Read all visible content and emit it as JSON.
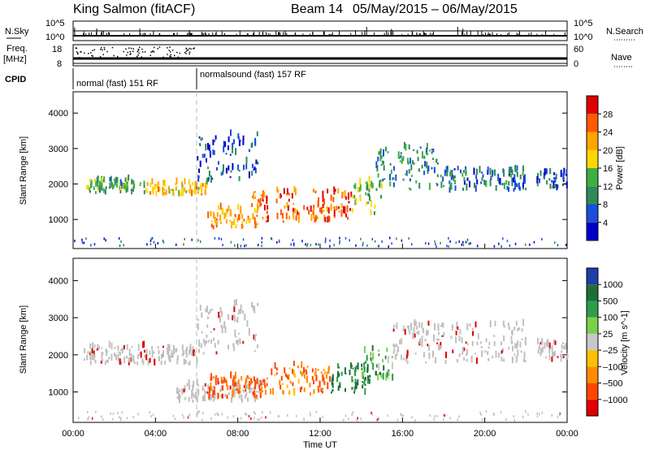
{
  "header": {
    "site": "King Salmon (fitACF)",
    "beam": "Beam 14",
    "date_range": "05/May/2015 – 06/May/2015"
  },
  "status_panel": {
    "left_labels": {
      "nsky": "N.Sky",
      "freq": "Freq.",
      "freq_unit": "[MHz]",
      "cpid": "CPID"
    },
    "right_labels": {
      "nsearch": "N.Search",
      "nave": "Nave"
    },
    "nsky_ticks": [
      "10^5",
      "10^0"
    ],
    "nsearch_ticks": [
      "10^5",
      "10^0"
    ],
    "freq_ticks": [
      "18",
      "8"
    ],
    "nave_ticks": [
      "60",
      "0"
    ],
    "cpid_segments": [
      {
        "label": "normal (fast) 151 RF",
        "start_hour": 0,
        "end_hour": 6
      },
      {
        "label": "normalsound (fast) 157 RF",
        "start_hour": 6,
        "end_hour": 24
      }
    ]
  },
  "colors": {
    "power_scale": [
      "#0000cc",
      "#1a4fd6",
      "#2e8b57",
      "#3cb043",
      "#ffd700",
      "#ffa500",
      "#ff5a00",
      "#e00000"
    ],
    "velocity_scale": [
      "#1e3ea8",
      "#1e6e3a",
      "#2e9e4a",
      "#7bd04b",
      "#c8c8c8",
      "#ffc000",
      "#ff8c00",
      "#ff4500",
      "#e00000"
    ],
    "ground_scatter": "#c0c0c0"
  },
  "chart_data": [
    {
      "type": "heatmap",
      "ylabel": "Slant Range [km]",
      "xlabel": "Time UT",
      "x_ticks": [
        "00:00",
        "04:00",
        "08:00",
        "12:00",
        "16:00",
        "20:00",
        "00:00"
      ],
      "xlim_hours": [
        0,
        24
      ],
      "y_ticks": [
        "1000",
        "2000",
        "3000",
        "4000"
      ],
      "ylim": [
        180,
        4600
      ],
      "colorbar": {
        "label": "Power [dB]",
        "ticks": [
          "4",
          "8",
          "12",
          "16",
          "20",
          "24",
          "28"
        ],
        "range": [
          0,
          32
        ]
      },
      "regions": [
        {
          "t0": 0.5,
          "t1": 3.5,
          "r0": 1700,
          "r1": 2100,
          "value": 12
        },
        {
          "t0": 3.5,
          "t1": 6.5,
          "r0": 1650,
          "r1": 2000,
          "value": 20
        },
        {
          "t0": 6.0,
          "t1": 9.0,
          "r0": 2000,
          "r1": 3400,
          "value": 6
        },
        {
          "t0": 6.5,
          "t1": 9.0,
          "r0": 700,
          "r1": 1300,
          "value": 22
        },
        {
          "t0": 8.5,
          "t1": 13.5,
          "r0": 900,
          "r1": 1800,
          "value": 26
        },
        {
          "t0": 13.5,
          "t1": 15.0,
          "r0": 1100,
          "r1": 2100,
          "value": 14
        },
        {
          "t0": 14.5,
          "t1": 18.0,
          "r0": 1800,
          "r1": 3000,
          "value": 10
        },
        {
          "t0": 18.0,
          "t1": 22.0,
          "r0": 1750,
          "r1": 2400,
          "value": 8
        },
        {
          "t0": 22.5,
          "t1": 24.0,
          "r0": 1800,
          "r1": 2300,
          "value": 6
        }
      ]
    },
    {
      "type": "heatmap",
      "ylabel": "Slant Range [km]",
      "xlabel": "Time UT",
      "x_ticks": [
        "00:00",
        "04:00",
        "08:00",
        "12:00",
        "16:00",
        "20:00",
        "00:00"
      ],
      "xlim_hours": [
        0,
        24
      ],
      "y_ticks": [
        "1000",
        "2000",
        "3000",
        "4000"
      ],
      "ylim": [
        180,
        4600
      ],
      "colorbar": {
        "label": "Velocity [m s^-1]",
        "ticks": [
          "1000",
          "500",
          "100",
          "25",
          "–25",
          "–100",
          "–500",
          "–1000"
        ]
      },
      "regions": [
        {
          "t0": 0.5,
          "t1": 6.0,
          "r0": 1700,
          "r1": 2200,
          "class": "ground"
        },
        {
          "t0": 6.0,
          "t1": 9.0,
          "r0": 2000,
          "r1": 3400,
          "class": "ground"
        },
        {
          "t0": 5.0,
          "t1": 9.0,
          "r0": 700,
          "r1": 1200,
          "class": "ground"
        },
        {
          "t0": 6.5,
          "t1": 9.5,
          "r0": 800,
          "r1": 1400,
          "value": -300
        },
        {
          "t0": 9.5,
          "t1": 12.5,
          "r0": 900,
          "r1": 1700,
          "value": -200
        },
        {
          "t0": 12.5,
          "t1": 14.5,
          "r0": 900,
          "r1": 1700,
          "value": 300
        },
        {
          "t0": 14.0,
          "t1": 15.5,
          "r0": 1200,
          "r1": 2100,
          "value": 150
        },
        {
          "t0": 15.5,
          "t1": 22.0,
          "r0": 1750,
          "r1": 2800,
          "class": "ground"
        },
        {
          "t0": 22.5,
          "t1": 24.0,
          "r0": 1800,
          "r1": 2300,
          "class": "ground"
        }
      ]
    }
  ]
}
